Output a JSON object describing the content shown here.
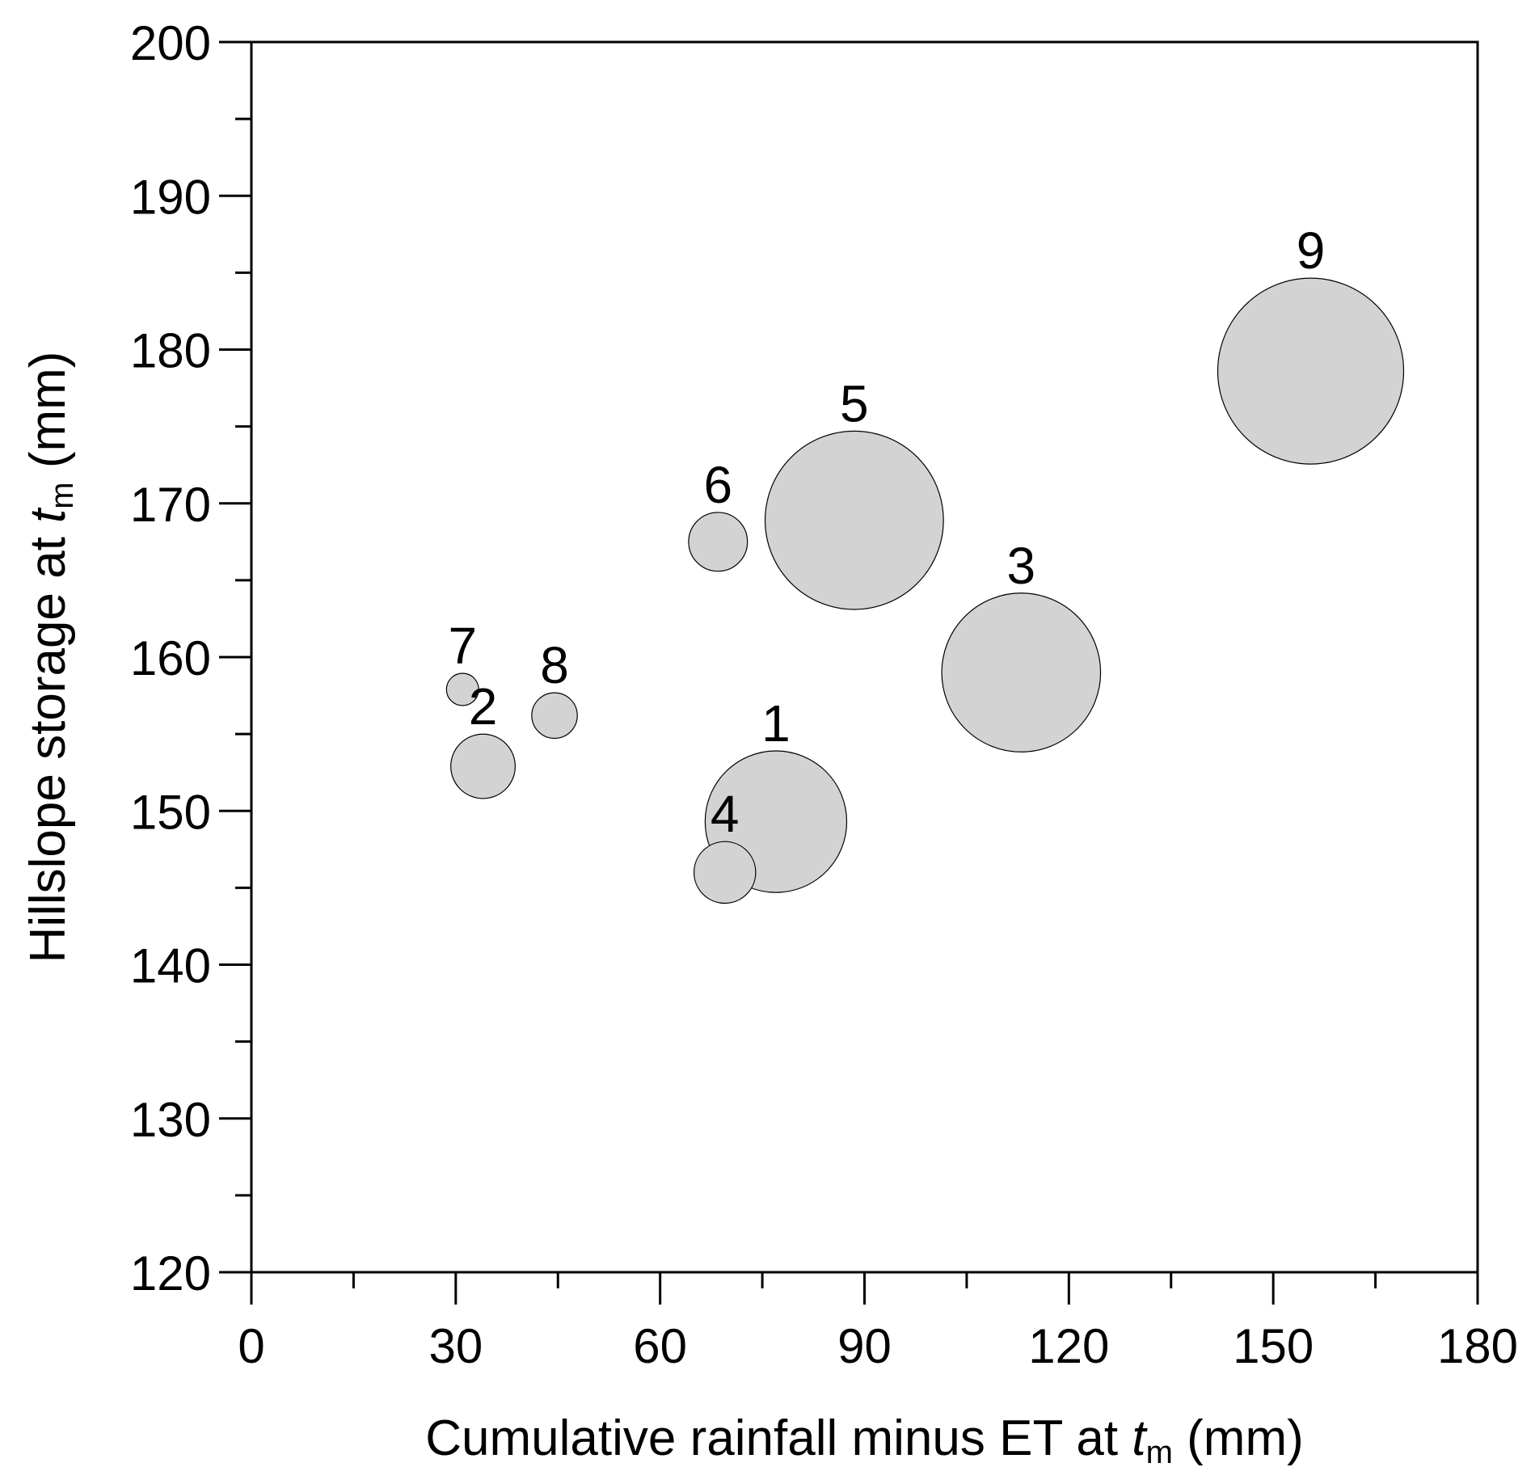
{
  "chart_data": {
    "type": "scatter",
    "title": "",
    "xlabel": {
      "prefix": "Cumulative rainfall minus ET at ",
      "var": "t",
      "sub": "m",
      "suffix": " (mm)"
    },
    "ylabel": {
      "prefix": "Hillslope storage at ",
      "var": "t",
      "sub": "m",
      "suffix": " (mm)"
    },
    "xlim": [
      0,
      180
    ],
    "ylim": [
      120,
      200
    ],
    "xticks": [
      0,
      30,
      60,
      90,
      120,
      150,
      180
    ],
    "yticks": [
      120,
      130,
      140,
      150,
      160,
      170,
      180,
      190,
      200
    ],
    "grid": false,
    "legend": "none",
    "marker_color": "#d3d3d3",
    "points": [
      {
        "label": "1",
        "x": 77,
        "y": 149.3,
        "size": 0.58
      },
      {
        "label": "2",
        "x": 34,
        "y": 152.9,
        "size": 0.12
      },
      {
        "label": "3",
        "x": 113,
        "y": 159.0,
        "size": 0.73
      },
      {
        "label": "4",
        "x": 69.5,
        "y": 146.0,
        "size": 0.11
      },
      {
        "label": "5",
        "x": 88.5,
        "y": 168.9,
        "size": 0.92
      },
      {
        "label": "6",
        "x": 68.5,
        "y": 167.5,
        "size": 0.1
      },
      {
        "label": "7",
        "x": 31,
        "y": 157.9,
        "size": 0.03
      },
      {
        "label": "8",
        "x": 44.5,
        "y": 156.2,
        "size": 0.06
      },
      {
        "label": "9",
        "x": 155.5,
        "y": 178.6,
        "size": 1.0
      }
    ]
  }
}
